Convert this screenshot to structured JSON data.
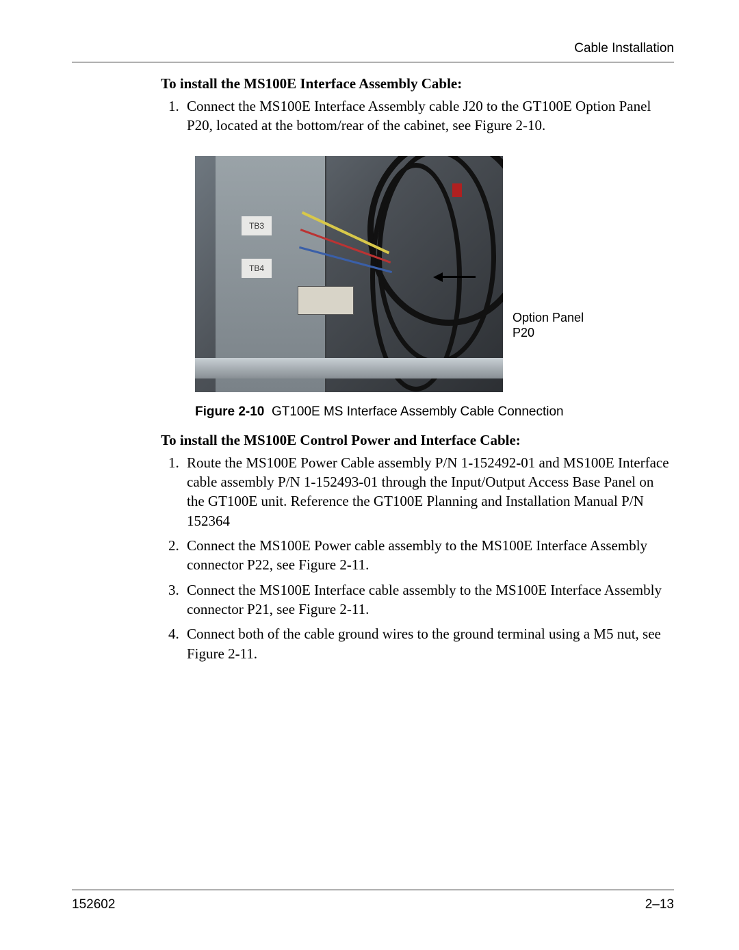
{
  "header": {
    "section_title": "Cable Installation"
  },
  "section1": {
    "heading": "To install the MS100E Interface Assembly Cable:",
    "items": [
      "Connect the MS100E Interface Assembly cable J20 to the GT100E Option Panel P20, located at the bottom/rear of the cabinet, see Figure 2-10."
    ]
  },
  "figure": {
    "callout": "Option Panel P20",
    "label_num": "Figure 2-10",
    "label_text": "GT100E MS Interface Assembly Cable Connection",
    "tb3": "TB3",
    "tb4": "TB4"
  },
  "section2": {
    "heading": "To install the MS100E Control Power and Interface Cable:",
    "items": [
      "Route the MS100E Power Cable assembly P/N 1-152492-01 and MS100E Interface cable assembly P/N 1-152493-01 through the Input/Output Access Base Panel on the GT100E unit. Reference the GT100E Planning and Installation Manual P/N 152364",
      "Connect the MS100E Power cable assembly to the MS100E Interface Assembly connector P22, see Figure 2-11.",
      "Connect the MS100E Interface cable assembly to the MS100E Interface Assembly connector P21, see Figure 2-11.",
      "Connect both of the cable ground wires to the ground terminal using a M5 nut, see Figure 2-11."
    ]
  },
  "footer": {
    "doc_number": "152602",
    "page_number": "2–13"
  }
}
